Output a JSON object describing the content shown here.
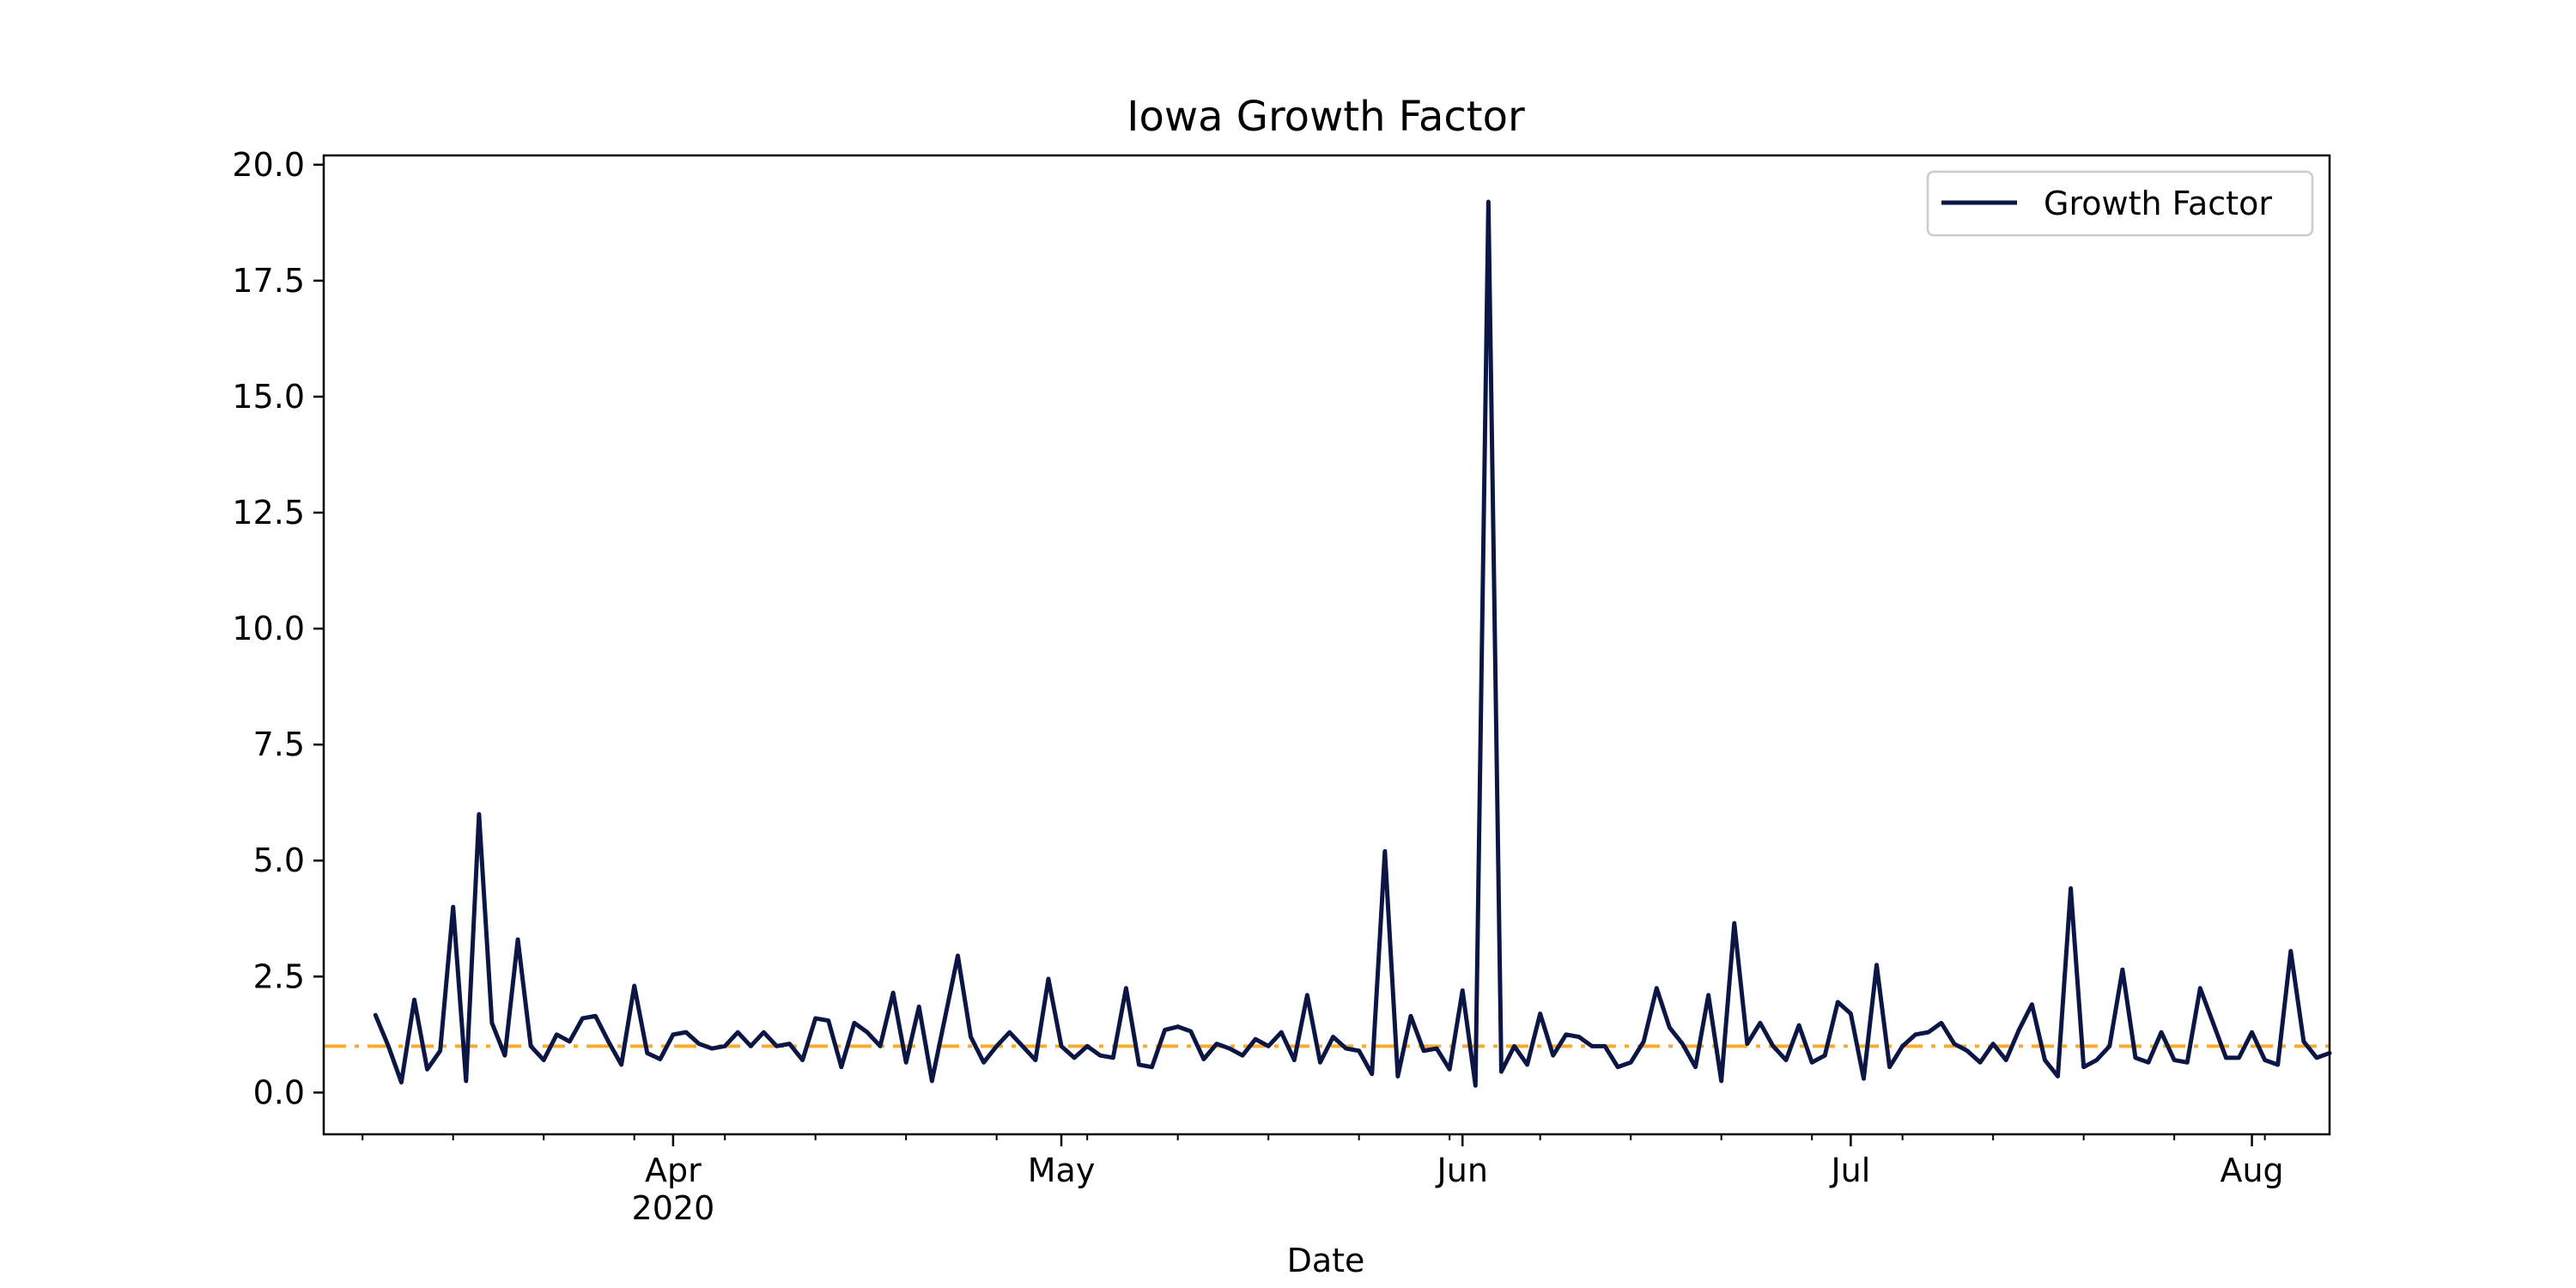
{
  "chart_data": {
    "type": "line",
    "title": "Iowa Growth Factor",
    "xlabel": "Date",
    "ylabel": "",
    "x_axis": "date",
    "xlim": [
      "2020-03-05",
      "2020-08-07"
    ],
    "ylim": [
      -0.9,
      20.2
    ],
    "yticks": [
      0.0,
      2.5,
      5.0,
      7.5,
      10.0,
      12.5,
      15.0,
      17.5,
      20.0
    ],
    "ytick_labels": [
      "0.0",
      "2.5",
      "5.0",
      "7.5",
      "10.0",
      "12.5",
      "15.0",
      "17.5",
      "20.0"
    ],
    "xticks": [
      {
        "date": "2020-04-01",
        "label": "Apr",
        "sublabel": "2020"
      },
      {
        "date": "2020-05-01",
        "label": "May",
        "sublabel": ""
      },
      {
        "date": "2020-06-01",
        "label": "Jun",
        "sublabel": ""
      },
      {
        "date": "2020-07-01",
        "label": "Jul",
        "sublabel": ""
      },
      {
        "date": "2020-08-01",
        "label": "Aug",
        "sublabel": ""
      }
    ],
    "minor_tick_interval_days": 7,
    "grid": false,
    "legend": {
      "position": "top-right",
      "entries": [
        "Growth Factor"
      ]
    },
    "reference_line": {
      "y": 1.0,
      "color": "#f5ac30",
      "style": "dash-dot"
    },
    "series": [
      {
        "name": "Growth Factor",
        "color": "#0b1645",
        "start_date": "2020-03-09",
        "interval_days": 1,
        "values": [
          1.67,
          1.0,
          0.22,
          2.0,
          0.5,
          0.9,
          4.0,
          0.25,
          6.0,
          1.5,
          0.8,
          3.3,
          1.0,
          0.7,
          1.25,
          1.1,
          1.6,
          1.65,
          1.1,
          0.6,
          2.3,
          0.85,
          0.72,
          1.25,
          1.3,
          1.05,
          0.95,
          1.0,
          1.3,
          1.0,
          1.3,
          1.0,
          1.05,
          0.7,
          1.6,
          1.55,
          0.55,
          1.5,
          1.3,
          1.0,
          2.15,
          0.65,
          1.85,
          0.25,
          1.6,
          2.95,
          1.2,
          0.65,
          1.0,
          1.3,
          1.0,
          0.7,
          2.45,
          1.0,
          0.75,
          1.0,
          0.8,
          0.75,
          2.25,
          0.6,
          0.55,
          1.35,
          1.42,
          1.32,
          0.72,
          1.05,
          0.95,
          0.8,
          1.15,
          1.0,
          1.3,
          0.7,
          2.1,
          0.65,
          1.2,
          0.95,
          0.9,
          0.4,
          5.2,
          0.35,
          1.65,
          0.9,
          0.95,
          0.5,
          2.2,
          0.15,
          19.2,
          0.45,
          1.0,
          0.6,
          1.7,
          0.8,
          1.25,
          1.2,
          1.0,
          1.0,
          0.55,
          0.65,
          1.1,
          2.25,
          1.4,
          1.05,
          0.55,
          2.1,
          0.25,
          3.65,
          1.05,
          1.5,
          1.0,
          0.7,
          1.45,
          0.65,
          0.8,
          1.95,
          1.7,
          0.3,
          2.75,
          0.55,
          1.0,
          1.25,
          1.3,
          1.5,
          1.05,
          0.9,
          0.65,
          1.05,
          0.7,
          1.35,
          1.9,
          0.7,
          0.35,
          4.4,
          0.55,
          0.7,
          1.0,
          2.65,
          0.75,
          0.65,
          1.3,
          0.7,
          0.65,
          2.25,
          1.5,
          0.75,
          0.75,
          1.3,
          0.7,
          0.6,
          3.05,
          1.1,
          0.75,
          0.85
        ]
      }
    ]
  }
}
